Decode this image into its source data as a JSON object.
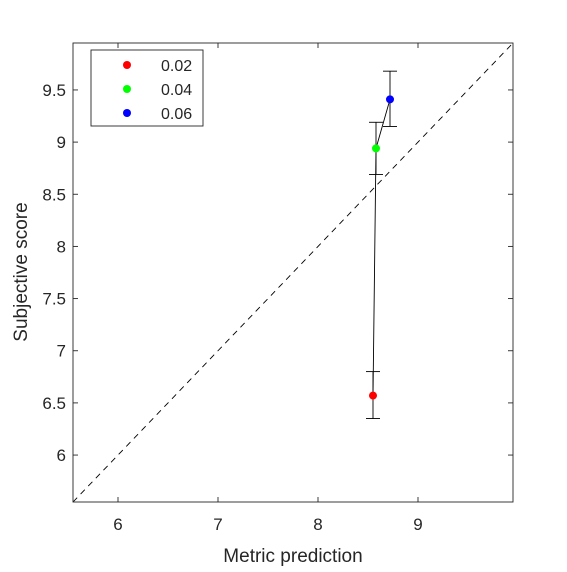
{
  "chart_data": {
    "type": "scatter",
    "title": "",
    "xlabel": "Metric prediction",
    "ylabel": "Subjective score",
    "xlim": [
      5.55,
      9.95
    ],
    "ylim": [
      5.55,
      9.95
    ],
    "xticks": [
      6,
      7,
      8,
      9
    ],
    "yticks": [
      6,
      6.5,
      7,
      7.5,
      8,
      8.5,
      9,
      9.5
    ],
    "xtick_labels": [
      "6",
      "7",
      "8",
      "9"
    ],
    "ytick_labels": [
      "6",
      "6.5",
      "7",
      "7.5",
      "8",
      "8.5",
      "9",
      "9.5"
    ],
    "grid": false,
    "legend_position": "top-left",
    "reference_line": "y = x (dashed)",
    "connecting_line": true,
    "points": [
      {
        "label": "0.02",
        "color": "#ff0000",
        "x": 8.55,
        "y": 6.57,
        "err_low": 6.35,
        "err_high": 6.8
      },
      {
        "label": "0.04",
        "color": "#00ff00",
        "x": 8.58,
        "y": 8.94,
        "err_low": 8.69,
        "err_high": 9.19
      },
      {
        "label": "0.06",
        "color": "#0000ff",
        "x": 8.72,
        "y": 9.41,
        "err_low": 9.15,
        "err_high": 9.68
      }
    ]
  }
}
